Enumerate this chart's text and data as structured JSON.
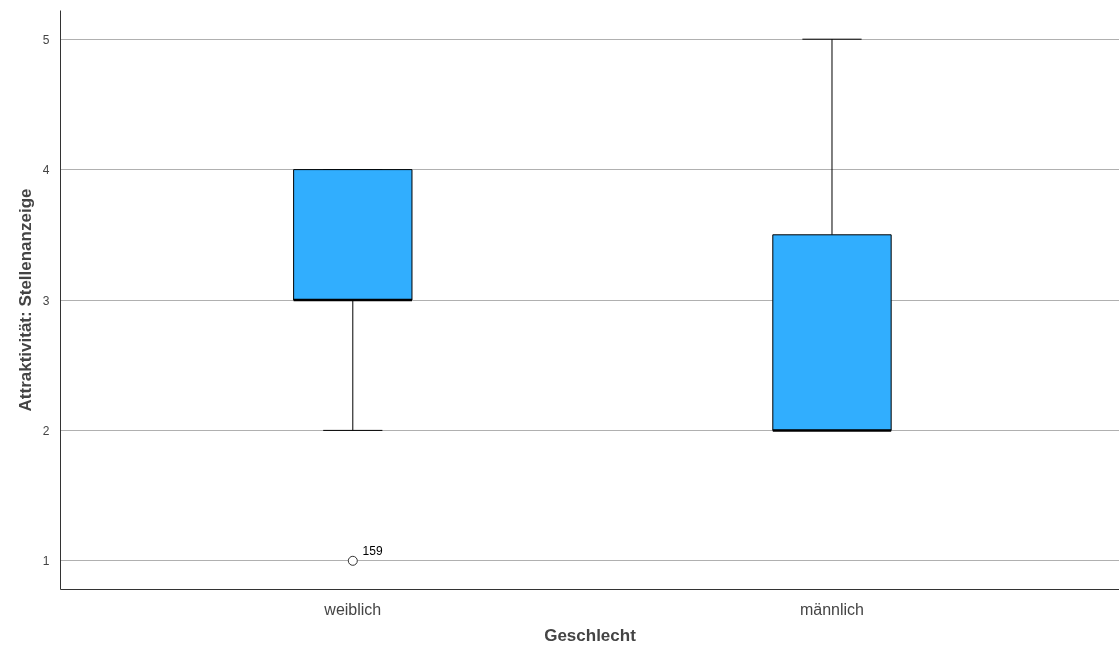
{
  "chart_data": {
    "type": "box",
    "xlabel": "Geschlecht",
    "ylabel": "Attraktivität: Stellenanzeige",
    "categories": [
      "weiblich",
      "männlich"
    ],
    "series": [
      {
        "color": "#31aefe",
        "boxes": [
          {
            "low": 2,
            "q1": 3,
            "median": 3,
            "q3": 4,
            "high": 4,
            "outliers": [
              1
            ]
          },
          {
            "low": 2,
            "q1": 2,
            "median": 2,
            "q3": 3.5,
            "high": 5
          }
        ]
      }
    ],
    "ylim": [
      0.78,
      5.22
    ],
    "yticks": [
      1,
      2,
      3,
      4,
      5
    ],
    "grid": "y",
    "annotations": [
      "159"
    ]
  }
}
